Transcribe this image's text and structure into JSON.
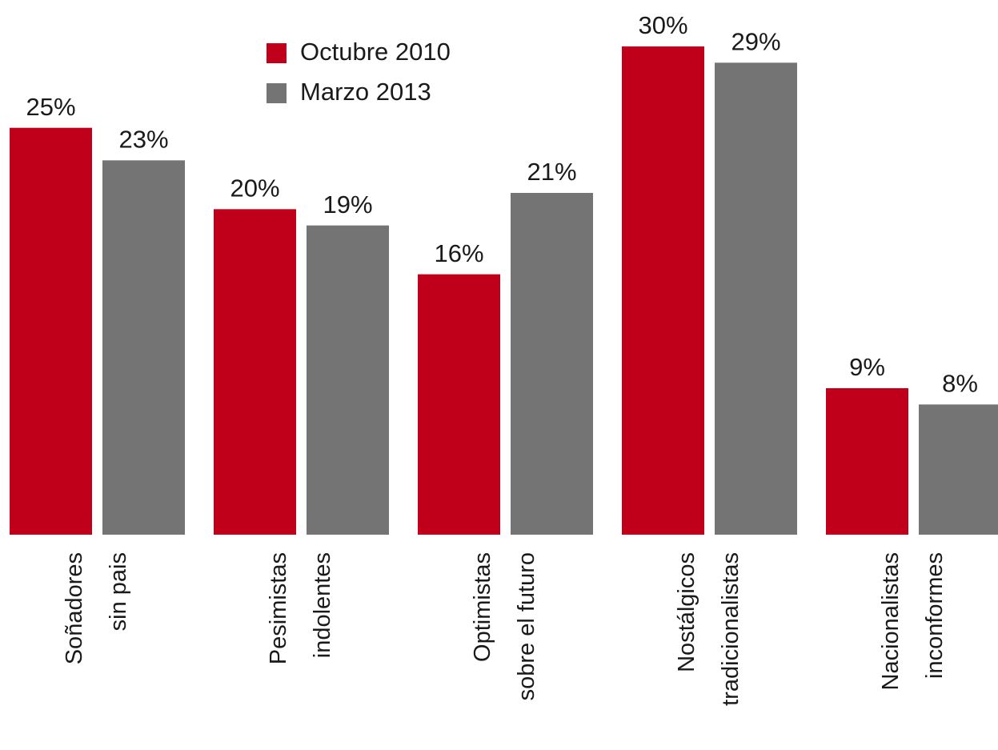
{
  "chart_data": {
    "type": "bar",
    "categories": [
      [
        "Soñadores",
        "sin pais"
      ],
      [
        "Pesimistas",
        "indolentes"
      ],
      [
        "Optimistas",
        "sobre el futuro"
      ],
      [
        "Nostálgicos",
        "tradicionalistas"
      ],
      [
        "Nacionalistas",
        "inconformes"
      ]
    ],
    "series": [
      {
        "name": "Octubre 2010",
        "color": "#c0001a",
        "values": [
          25,
          20,
          16,
          30,
          9
        ],
        "value_labels": [
          "25%",
          "20%",
          "16%",
          "30%",
          "9%"
        ]
      },
      {
        "name": "Marzo 2013",
        "color": "#747474",
        "values": [
          23,
          19,
          21,
          29,
          8
        ],
        "value_labels": [
          "23%",
          "19%",
          "21%",
          "29%",
          "8%"
        ]
      }
    ],
    "ylim": [
      0,
      30
    ]
  }
}
